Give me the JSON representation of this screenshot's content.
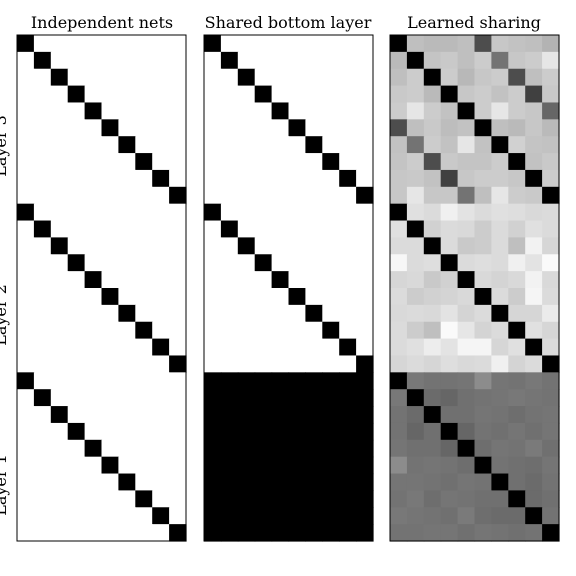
{
  "chart_data": {
    "type": "heatmap",
    "rows": 30,
    "cols": 10,
    "grayscale": "0 = black, 1 = white",
    "row_groups": [
      "Layer 3",
      "Layer 2",
      "Layer 1"
    ],
    "panels": [
      {
        "title": "Independent nets",
        "pattern": "block-diagonal identity per layer"
      },
      {
        "title": "Shared bottom layer",
        "pattern": "identity in layers 3 and 2, all black in layer 1"
      },
      {
        "title": "Learned sharing",
        "pattern": "black diagonal with gray off-diagonal values"
      }
    ],
    "learned_sharing": {
      "layer3": [
        [
          0.0,
          0.75,
          0.73,
          0.73,
          0.75,
          0.3,
          0.78,
          0.76,
          0.75,
          0.7
        ],
        [
          0.73,
          0.0,
          0.77,
          0.79,
          0.75,
          0.8,
          0.45,
          0.78,
          0.8,
          0.9
        ],
        [
          0.75,
          0.8,
          0.0,
          0.8,
          0.72,
          0.78,
          0.8,
          0.3,
          0.75,
          0.8
        ],
        [
          0.79,
          0.8,
          0.73,
          0.0,
          0.78,
          0.8,
          0.76,
          0.8,
          0.25,
          0.79
        ],
        [
          0.8,
          0.9,
          0.8,
          0.76,
          0.0,
          0.8,
          0.9,
          0.8,
          0.78,
          0.4
        ],
        [
          0.3,
          0.75,
          0.79,
          0.74,
          0.76,
          0.0,
          0.75,
          0.73,
          0.78,
          0.73
        ],
        [
          0.76,
          0.45,
          0.8,
          0.76,
          0.9,
          0.76,
          0.0,
          0.82,
          0.77,
          0.76
        ],
        [
          0.77,
          0.8,
          0.3,
          0.79,
          0.77,
          0.77,
          0.8,
          0.0,
          0.76,
          0.79
        ],
        [
          0.78,
          0.79,
          0.76,
          0.25,
          0.78,
          0.8,
          0.8,
          0.78,
          0.0,
          0.8
        ],
        [
          0.78,
          0.9,
          0.78,
          0.78,
          0.45,
          0.75,
          0.9,
          0.8,
          0.79,
          0.0
        ]
      ],
      "layer2": [
        [
          0.0,
          0.88,
          0.86,
          0.94,
          0.89,
          0.86,
          0.88,
          0.87,
          0.85,
          0.86
        ],
        [
          0.88,
          0.0,
          0.82,
          0.86,
          0.85,
          0.8,
          0.86,
          0.82,
          0.88,
          0.86
        ],
        [
          0.86,
          0.86,
          0.0,
          0.86,
          0.79,
          0.8,
          0.86,
          0.75,
          0.95,
          0.84
        ],
        [
          0.97,
          0.86,
          0.87,
          0.0,
          0.86,
          0.87,
          0.86,
          0.94,
          0.89,
          0.98
        ],
        [
          0.84,
          0.85,
          0.79,
          0.82,
          0.0,
          0.85,
          0.83,
          0.85,
          0.95,
          0.85
        ],
        [
          0.86,
          0.8,
          0.82,
          0.83,
          0.85,
          0.0,
          0.86,
          0.8,
          0.96,
          0.86
        ],
        [
          0.85,
          0.86,
          0.85,
          0.89,
          0.83,
          0.86,
          0.0,
          0.84,
          0.84,
          0.92
        ],
        [
          0.86,
          0.8,
          0.75,
          0.98,
          0.9,
          0.83,
          0.86,
          0.0,
          0.88,
          0.84
        ],
        [
          0.86,
          0.88,
          0.93,
          0.89,
          0.96,
          0.96,
          0.84,
          0.88,
          0.0,
          0.86
        ],
        [
          0.84,
          0.86,
          0.84,
          0.87,
          0.85,
          0.86,
          0.94,
          0.83,
          0.86,
          0.0
        ]
      ],
      "layer1": [
        [
          0.0,
          0.47,
          0.45,
          0.45,
          0.46,
          0.55,
          0.46,
          0.45,
          0.47,
          0.45
        ],
        [
          0.47,
          0.0,
          0.42,
          0.4,
          0.44,
          0.45,
          0.46,
          0.47,
          0.46,
          0.45
        ],
        [
          0.45,
          0.42,
          0.0,
          0.44,
          0.44,
          0.46,
          0.45,
          0.43,
          0.45,
          0.46
        ],
        [
          0.45,
          0.4,
          0.44,
          0.0,
          0.4,
          0.45,
          0.44,
          0.46,
          0.44,
          0.46
        ],
        [
          0.46,
          0.44,
          0.44,
          0.4,
          0.0,
          0.43,
          0.46,
          0.45,
          0.48,
          0.44
        ],
        [
          0.55,
          0.45,
          0.46,
          0.45,
          0.43,
          0.0,
          0.45,
          0.44,
          0.43,
          0.46
        ],
        [
          0.46,
          0.46,
          0.45,
          0.44,
          0.46,
          0.45,
          0.0,
          0.44,
          0.42,
          0.45
        ],
        [
          0.45,
          0.47,
          0.43,
          0.46,
          0.45,
          0.44,
          0.44,
          0.0,
          0.42,
          0.44
        ],
        [
          0.47,
          0.46,
          0.45,
          0.44,
          0.48,
          0.43,
          0.42,
          0.42,
          0.0,
          0.45
        ],
        [
          0.45,
          0.45,
          0.46,
          0.46,
          0.44,
          0.46,
          0.45,
          0.44,
          0.45,
          0.0
        ]
      ]
    }
  }
}
